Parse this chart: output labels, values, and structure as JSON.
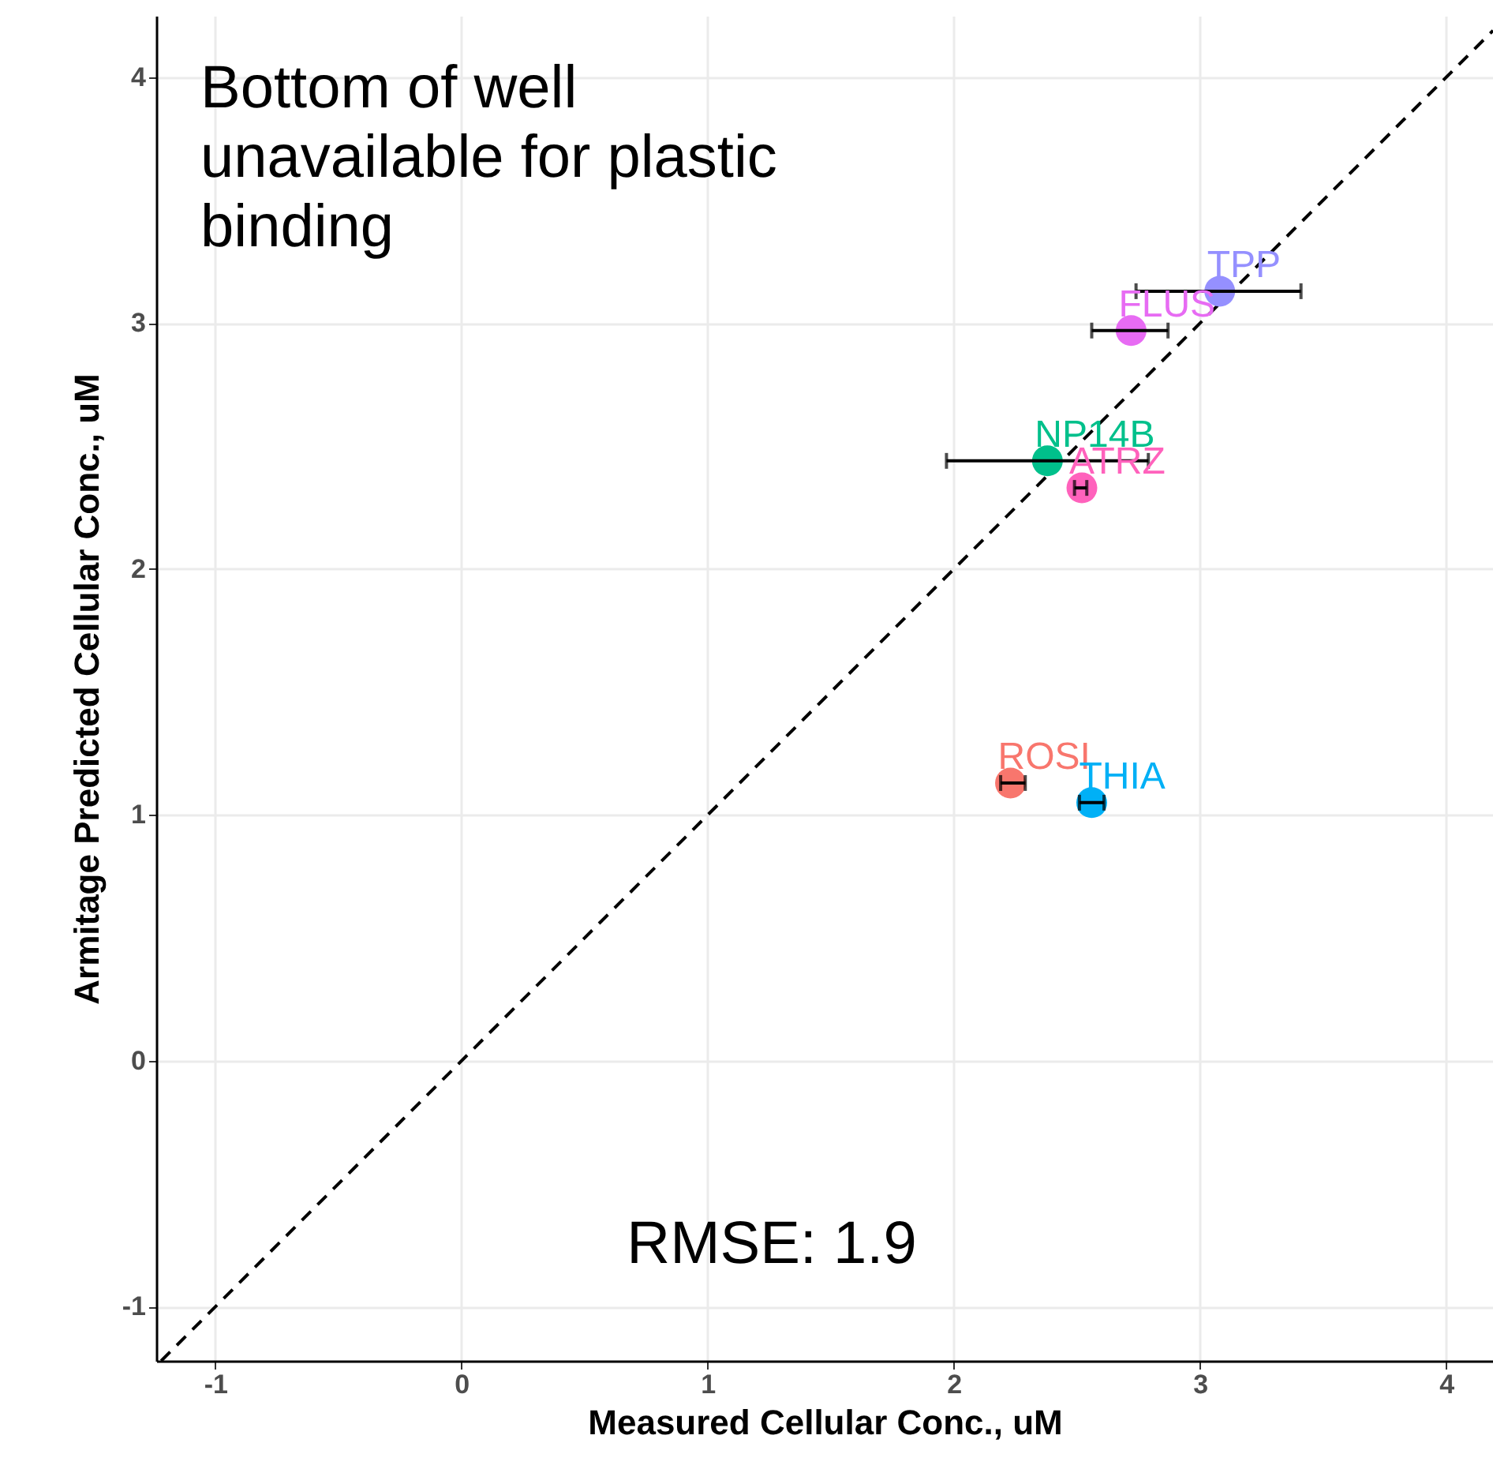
{
  "chart_data": {
    "type": "scatter",
    "xlabel": "Measured Cellular Conc., uM",
    "ylabel": "Armitage Predicted Cellular Conc., uM",
    "xlim": [
      -1.24,
      4.19
    ],
    "ylim": [
      -1.22,
      4.25
    ],
    "xticks": [
      -1,
      0,
      1,
      2,
      3,
      4
    ],
    "yticks": [
      -1,
      0,
      1,
      2,
      3,
      4
    ],
    "grid": true,
    "marker": "circle",
    "annotations": [
      "Bottom of well\nunavailable for plastic\nbinding",
      "RMSE: 1.9"
    ],
    "series": [
      {
        "name": "TPP",
        "color": "#9590ff",
        "x": [
          3.08
        ],
        "values": [
          3.13
        ],
        "xerrors": [
          [
            2.74,
            3.41
          ]
        ]
      },
      {
        "name": "FLUS",
        "color": "#e76bf3",
        "x": [
          2.72
        ],
        "values": [
          2.97
        ],
        "xerrors": [
          [
            2.56,
            2.87
          ]
        ]
      },
      {
        "name": "NP14B",
        "color": "#00c08b",
        "x": [
          2.38
        ],
        "values": [
          2.44
        ],
        "xerrors": [
          [
            1.97,
            2.79
          ]
        ]
      },
      {
        "name": "ATRZ",
        "color": "#ff62bc",
        "x": [
          2.52
        ],
        "values": [
          2.33
        ],
        "xerrors": [
          [
            2.49,
            2.54
          ]
        ]
      },
      {
        "name": "ROSI",
        "color": "#f8766d",
        "x": [
          2.23
        ],
        "values": [
          1.13
        ],
        "xerrors": [
          [
            2.19,
            2.29
          ]
        ]
      },
      {
        "name": "THIA",
        "color": "#00b0f6",
        "x": [
          2.56
        ],
        "values": [
          1.05
        ],
        "xerrors": [
          [
            2.51,
            2.61
          ]
        ]
      },
      {
        "type": "line",
        "marker": "none",
        "color": "#000000",
        "line_style": "dashed",
        "x": [
          -1.22,
          4.19
        ],
        "values": [
          -1.22,
          4.19
        ]
      }
    ]
  }
}
